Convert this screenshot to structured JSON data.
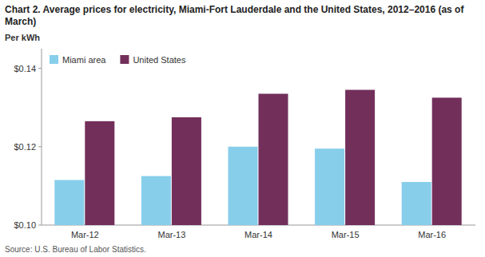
{
  "chart_data": {
    "type": "bar",
    "title": "Chart 2. Average prices for electricity, Miami-Fort Lauderdale and the United States, 2012–2016 (as of March)",
    "y_label": "Per kWh",
    "source": "Source: U.S. Bureau of Labor Statistics.",
    "categories": [
      "Mar-12",
      "Mar-13",
      "Mar-14",
      "Mar-15",
      "Mar-16"
    ],
    "series": [
      {
        "name": "Miami area",
        "color": "#87CEEB",
        "values": [
          0.1115,
          0.1125,
          0.12,
          0.1195,
          0.111
        ]
      },
      {
        "name": "United States",
        "color": "#722F5A",
        "values": [
          0.1265,
          0.1275,
          0.1335,
          0.1345,
          0.1325
        ]
      }
    ],
    "ylim": [
      0.1,
      0.145
    ],
    "yticks": [
      {
        "value": 0.1,
        "label": "$0.10"
      },
      {
        "value": 0.12,
        "label": "$0.12"
      },
      {
        "value": 0.14,
        "label": "$0.14"
      }
    ],
    "grid": false,
    "legend": "upper left"
  }
}
